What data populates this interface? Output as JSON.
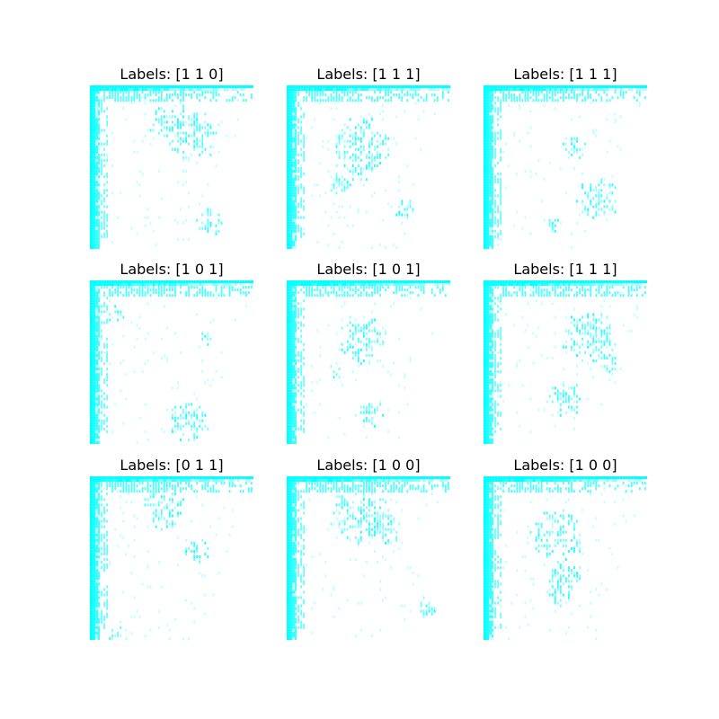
{
  "chart_data": [
    {
      "type": "heatmap",
      "title": "Labels: [1 1 0]",
      "seed": 11,
      "blobs": [
        [
          0.62,
          0.28,
          0.18
        ],
        [
          0.45,
          0.22,
          0.1
        ],
        [
          0.73,
          0.83,
          0.1
        ]
      ]
    },
    {
      "type": "heatmap",
      "title": "Labels: [1 1 1]",
      "seed": 23,
      "blobs": [
        [
          0.45,
          0.38,
          0.2
        ],
        [
          0.33,
          0.6,
          0.08
        ],
        [
          0.72,
          0.75,
          0.07
        ]
      ]
    },
    {
      "type": "heatmap",
      "title": "Labels: [1 1 1]",
      "seed": 37,
      "blobs": [
        [
          0.55,
          0.38,
          0.08
        ],
        [
          0.7,
          0.68,
          0.14
        ],
        [
          0.42,
          0.85,
          0.05
        ]
      ]
    },
    {
      "type": "heatmap",
      "title": "Labels: [1 0 1]",
      "seed": 41,
      "blobs": [
        [
          0.6,
          0.85,
          0.14
        ],
        [
          0.72,
          0.35,
          0.06
        ],
        [
          0.15,
          0.2,
          0.06
        ]
      ]
    },
    {
      "type": "heatmap",
      "title": "Labels: [1 0 1]",
      "seed": 53,
      "blobs": [
        [
          0.45,
          0.35,
          0.16
        ],
        [
          0.5,
          0.8,
          0.1
        ],
        [
          0.3,
          0.55,
          0.05
        ]
      ]
    },
    {
      "type": "heatmap",
      "title": "Labels: [1 1 1]",
      "seed": 67,
      "blobs": [
        [
          0.65,
          0.35,
          0.18
        ],
        [
          0.5,
          0.72,
          0.12
        ],
        [
          0.78,
          0.5,
          0.06
        ]
      ]
    },
    {
      "type": "heatmap",
      "title": "Labels: [0 1 1]",
      "seed": 71,
      "blobs": [
        [
          0.45,
          0.18,
          0.14
        ],
        [
          0.65,
          0.45,
          0.08
        ],
        [
          0.15,
          0.95,
          0.06
        ]
      ]
    },
    {
      "type": "heatmap",
      "title": "Labels: [1 0 0]",
      "seed": 83,
      "blobs": [
        [
          0.45,
          0.22,
          0.2
        ],
        [
          0.6,
          0.3,
          0.12
        ],
        [
          0.85,
          0.8,
          0.07
        ]
      ]
    },
    {
      "type": "heatmap",
      "title": "Labels: [1 0 0]",
      "seed": 97,
      "blobs": [
        [
          0.45,
          0.35,
          0.18
        ],
        [
          0.5,
          0.6,
          0.12
        ],
        [
          0.45,
          0.72,
          0.08
        ]
      ]
    }
  ],
  "colors": {
    "mark": "#00ffff",
    "background": "#ffffff"
  }
}
